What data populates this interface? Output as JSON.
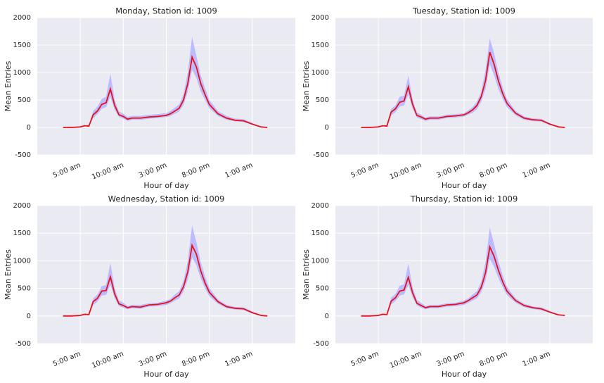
{
  "chart_data": [
    {
      "type": "line",
      "title": "Monday, Station id: 1009",
      "x_label": "Hour of day",
      "y_label": "Mean Entries",
      "x": [
        3,
        4,
        5,
        5.5,
        6,
        6.5,
        7,
        7.5,
        8,
        8.5,
        9,
        9.5,
        10,
        10.5,
        11,
        12,
        13,
        14,
        15,
        15.5,
        16,
        16.5,
        17,
        17.5,
        18,
        18.5,
        19,
        19.5,
        20,
        21,
        22,
        23,
        24,
        25,
        26,
        26.75
      ],
      "series": [
        {
          "color": "#e8101a",
          "values": [
            0,
            0,
            10,
            30,
            25,
            230,
            300,
            420,
            450,
            700,
            400,
            230,
            200,
            150,
            170,
            170,
            190,
            200,
            220,
            250,
            300,
            350,
            500,
            800,
            1280,
            1100,
            800,
            600,
            420,
            250,
            170,
            130,
            120,
            60,
            10,
            0
          ]
        }
      ],
      "band": {
        "color": "#b3b3ff",
        "lower": [
          0,
          0,
          5,
          20,
          15,
          170,
          240,
          340,
          370,
          560,
          320,
          190,
          160,
          120,
          140,
          140,
          160,
          170,
          190,
          210,
          250,
          290,
          410,
          650,
          1050,
          900,
          660,
          500,
          350,
          210,
          140,
          110,
          100,
          45,
          5,
          0
        ],
        "upper": [
          0,
          0,
          15,
          40,
          35,
          300,
          380,
          520,
          560,
          980,
          500,
          290,
          250,
          190,
          210,
          210,
          230,
          240,
          260,
          300,
          360,
          420,
          600,
          1000,
          1650,
          1300,
          950,
          720,
          500,
          300,
          210,
          160,
          150,
          80,
          15,
          0
        ]
      },
      "xlim": [
        0,
        30
      ],
      "xticks": [
        {
          "value": 5,
          "label": "5:00 am"
        },
        {
          "value": 10,
          "label": "10:00 am"
        },
        {
          "value": 15,
          "label": "3:00 pm"
        },
        {
          "value": 20,
          "label": "8:00 pm"
        },
        {
          "value": 25,
          "label": "1:00 am"
        }
      ],
      "ylim": [
        -500,
        2000
      ],
      "yticks": [
        -500,
        0,
        500,
        1000,
        1500,
        2000
      ],
      "grid": true
    },
    {
      "type": "line",
      "title": "Tuesday, Station id: 1009",
      "x_label": "Hour of day",
      "y_label": "Mean Entries",
      "x": [
        3,
        4,
        5,
        5.5,
        6,
        6.5,
        7,
        7.5,
        8,
        8.5,
        9,
        9.5,
        10,
        10.5,
        11,
        12,
        13,
        14,
        15,
        15.5,
        16,
        16.5,
        17,
        17.5,
        18,
        18.5,
        19,
        19.5,
        20,
        21,
        22,
        23,
        24,
        25,
        26,
        26.75
      ],
      "series": [
        {
          "color": "#e8101a",
          "values": [
            0,
            0,
            10,
            30,
            25,
            280,
            340,
            460,
            480,
            740,
            420,
            220,
            190,
            150,
            170,
            170,
            200,
            210,
            230,
            270,
            320,
            400,
            560,
            850,
            1370,
            1150,
            850,
            620,
            440,
            260,
            170,
            140,
            130,
            60,
            10,
            0
          ]
        }
      ],
      "band": {
        "color": "#b3b3ff",
        "lower": [
          0,
          0,
          5,
          20,
          15,
          220,
          280,
          380,
          400,
          600,
          340,
          180,
          150,
          120,
          140,
          140,
          170,
          180,
          200,
          230,
          270,
          330,
          470,
          700,
          1150,
          950,
          700,
          520,
          370,
          220,
          140,
          115,
          105,
          45,
          5,
          0
        ],
        "upper": [
          0,
          0,
          15,
          40,
          35,
          340,
          400,
          560,
          580,
          940,
          510,
          270,
          230,
          180,
          200,
          200,
          230,
          240,
          260,
          310,
          370,
          470,
          650,
          1050,
          1620,
          1350,
          1000,
          730,
          520,
          300,
          200,
          165,
          155,
          80,
          15,
          0
        ]
      },
      "xlim": [
        0,
        30
      ],
      "xticks": [
        {
          "value": 5,
          "label": "5:00 am"
        },
        {
          "value": 10,
          "label": "10:00 am"
        },
        {
          "value": 15,
          "label": "3:00 pm"
        },
        {
          "value": 20,
          "label": "8:00 pm"
        },
        {
          "value": 25,
          "label": "1:00 am"
        }
      ],
      "ylim": [
        -500,
        2000
      ],
      "yticks": [
        -500,
        0,
        500,
        1000,
        1500,
        2000
      ],
      "grid": true
    },
    {
      "type": "line",
      "title": "Wednesday, Station id: 1009",
      "x_label": "Hour of day",
      "y_label": "Mean Entries",
      "x": [
        3,
        4,
        5,
        5.5,
        6,
        6.5,
        7,
        7.5,
        8,
        8.5,
        9,
        9.5,
        10,
        10.5,
        11,
        12,
        13,
        14,
        15,
        15.5,
        16,
        16.5,
        17,
        17.5,
        18,
        18.5,
        19,
        19.5,
        20,
        21,
        22,
        23,
        24,
        25,
        26,
        26.75
      ],
      "series": [
        {
          "color": "#e8101a",
          "values": [
            0,
            0,
            10,
            30,
            25,
            260,
            320,
            450,
            460,
            710,
            400,
            220,
            190,
            150,
            170,
            160,
            200,
            210,
            240,
            270,
            330,
            380,
            530,
            800,
            1280,
            1120,
            820,
            600,
            430,
            260,
            170,
            140,
            130,
            60,
            10,
            0
          ]
        }
      ],
      "band": {
        "color": "#b3b3ff",
        "lower": [
          0,
          0,
          5,
          20,
          15,
          200,
          260,
          370,
          380,
          570,
          320,
          180,
          150,
          120,
          140,
          130,
          170,
          180,
          200,
          230,
          280,
          320,
          440,
          660,
          1060,
          920,
          680,
          500,
          360,
          220,
          140,
          115,
          105,
          45,
          5,
          0
        ],
        "upper": [
          0,
          0,
          15,
          40,
          35,
          320,
          390,
          540,
          560,
          960,
          500,
          280,
          240,
          180,
          200,
          200,
          230,
          240,
          280,
          310,
          390,
          450,
          630,
          1000,
          1640,
          1330,
          980,
          720,
          510,
          300,
          200,
          165,
          155,
          80,
          15,
          0
        ]
      },
      "xlim": [
        0,
        30
      ],
      "xticks": [
        {
          "value": 5,
          "label": "5:00 am"
        },
        {
          "value": 10,
          "label": "10:00 am"
        },
        {
          "value": 15,
          "label": "3:00 pm"
        },
        {
          "value": 20,
          "label": "8:00 pm"
        },
        {
          "value": 25,
          "label": "1:00 am"
        }
      ],
      "ylim": [
        -500,
        2000
      ],
      "yticks": [
        -500,
        0,
        500,
        1000,
        1500,
        2000
      ],
      "grid": true
    },
    {
      "type": "line",
      "title": "Thursday, Station id: 1009",
      "x_label": "Hour of day",
      "y_label": "Mean Entries",
      "x": [
        3,
        4,
        5,
        5.5,
        6,
        6.5,
        7,
        7.5,
        8,
        8.5,
        9,
        9.5,
        10,
        10.5,
        11,
        12,
        13,
        14,
        15,
        15.5,
        16,
        16.5,
        17,
        17.5,
        18,
        18.5,
        19,
        19.5,
        20,
        21,
        22,
        23,
        24,
        25,
        26,
        26.75
      ],
      "series": [
        {
          "color": "#e8101a",
          "values": [
            0,
            0,
            10,
            30,
            25,
            270,
            330,
            450,
            470,
            700,
            420,
            230,
            190,
            150,
            170,
            170,
            200,
            210,
            240,
            280,
            330,
            380,
            520,
            780,
            1250,
            1080,
            830,
            620,
            450,
            280,
            190,
            150,
            130,
            70,
            20,
            10
          ]
        }
      ],
      "band": {
        "color": "#b3b3ff",
        "lower": [
          0,
          0,
          5,
          20,
          15,
          210,
          270,
          370,
          390,
          560,
          340,
          190,
          150,
          120,
          140,
          140,
          170,
          180,
          200,
          240,
          280,
          320,
          430,
          640,
          1030,
          890,
          690,
          520,
          380,
          240,
          160,
          125,
          105,
          55,
          10,
          5
        ],
        "upper": [
          0,
          0,
          15,
          40,
          35,
          330,
          400,
          550,
          570,
          950,
          520,
          290,
          240,
          180,
          200,
          200,
          230,
          240,
          280,
          320,
          390,
          450,
          620,
          980,
          1600,
          1300,
          990,
          740,
          530,
          320,
          220,
          175,
          155,
          90,
          30,
          15
        ]
      },
      "xlim": [
        0,
        30
      ],
      "xticks": [
        {
          "value": 5,
          "label": "5:00 am"
        },
        {
          "value": 10,
          "label": "10:00 am"
        },
        {
          "value": 15,
          "label": "3:00 pm"
        },
        {
          "value": 20,
          "label": "8:00 pm"
        },
        {
          "value": 25,
          "label": "1:00 am"
        }
      ],
      "ylim": [
        -500,
        2000
      ],
      "yticks": [
        -500,
        0,
        500,
        1000,
        1500,
        2000
      ],
      "grid": true
    }
  ]
}
